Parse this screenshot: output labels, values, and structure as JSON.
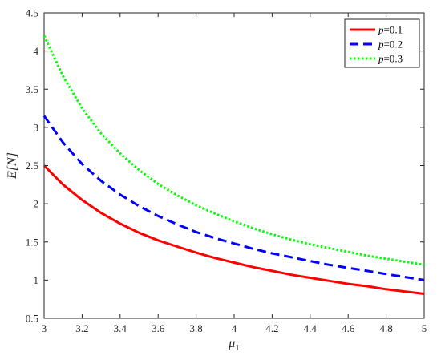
{
  "chart_data": {
    "type": "line",
    "title": "",
    "xlabel": "μ",
    "xlabel_subscript": "1",
    "ylabel": "E[N]",
    "xlim": [
      3,
      5
    ],
    "ylim": [
      0.5,
      4.5
    ],
    "x_ticks": [
      3,
      3.2,
      3.4,
      3.6,
      3.8,
      4,
      4.2,
      4.4,
      4.6,
      4.8,
      5
    ],
    "x_tick_labels": [
      "3",
      "3.2",
      "3.4",
      "3.6",
      "3.8",
      "4",
      "4.2",
      "4.4",
      "4.6",
      "4.8",
      "5"
    ],
    "y_ticks": [
      0.5,
      1,
      1.5,
      2,
      2.5,
      3,
      3.5,
      4,
      4.5
    ],
    "y_tick_labels": [
      "0.5",
      "1",
      "1.5",
      "2",
      "2.5",
      "3",
      "3.5",
      "4",
      "4.5"
    ],
    "grid": false,
    "legend_position": "top-right",
    "x": [
      3.0,
      3.1,
      3.2,
      3.3,
      3.4,
      3.5,
      3.6,
      3.7,
      3.8,
      3.9,
      4.0,
      4.1,
      4.2,
      4.3,
      4.4,
      4.5,
      4.6,
      4.7,
      4.8,
      4.9,
      5.0
    ],
    "series": [
      {
        "name": "p=0.1",
        "legend_var": "p",
        "legend_value": "=0.1",
        "color": "#ff0000",
        "style": "solid",
        "values": [
          2.5,
          2.25,
          2.05,
          1.88,
          1.74,
          1.62,
          1.52,
          1.44,
          1.36,
          1.29,
          1.23,
          1.17,
          1.12,
          1.07,
          1.03,
          0.99,
          0.95,
          0.92,
          0.88,
          0.85,
          0.82
        ]
      },
      {
        "name": "p=0.2",
        "legend_var": "p",
        "legend_value": "=0.2",
        "color": "#0000ff",
        "style": "dashed",
        "values": [
          3.15,
          2.8,
          2.52,
          2.3,
          2.12,
          1.97,
          1.84,
          1.73,
          1.63,
          1.55,
          1.48,
          1.41,
          1.35,
          1.3,
          1.25,
          1.2,
          1.16,
          1.12,
          1.08,
          1.04,
          1.0
        ]
      },
      {
        "name": "p=0.3",
        "legend_var": "p",
        "legend_value": "=0.3",
        "color": "#00ff00",
        "style": "dotted",
        "values": [
          4.2,
          3.67,
          3.25,
          2.92,
          2.66,
          2.44,
          2.26,
          2.11,
          1.98,
          1.87,
          1.77,
          1.68,
          1.6,
          1.53,
          1.47,
          1.42,
          1.37,
          1.32,
          1.28,
          1.24,
          1.2
        ]
      }
    ]
  }
}
